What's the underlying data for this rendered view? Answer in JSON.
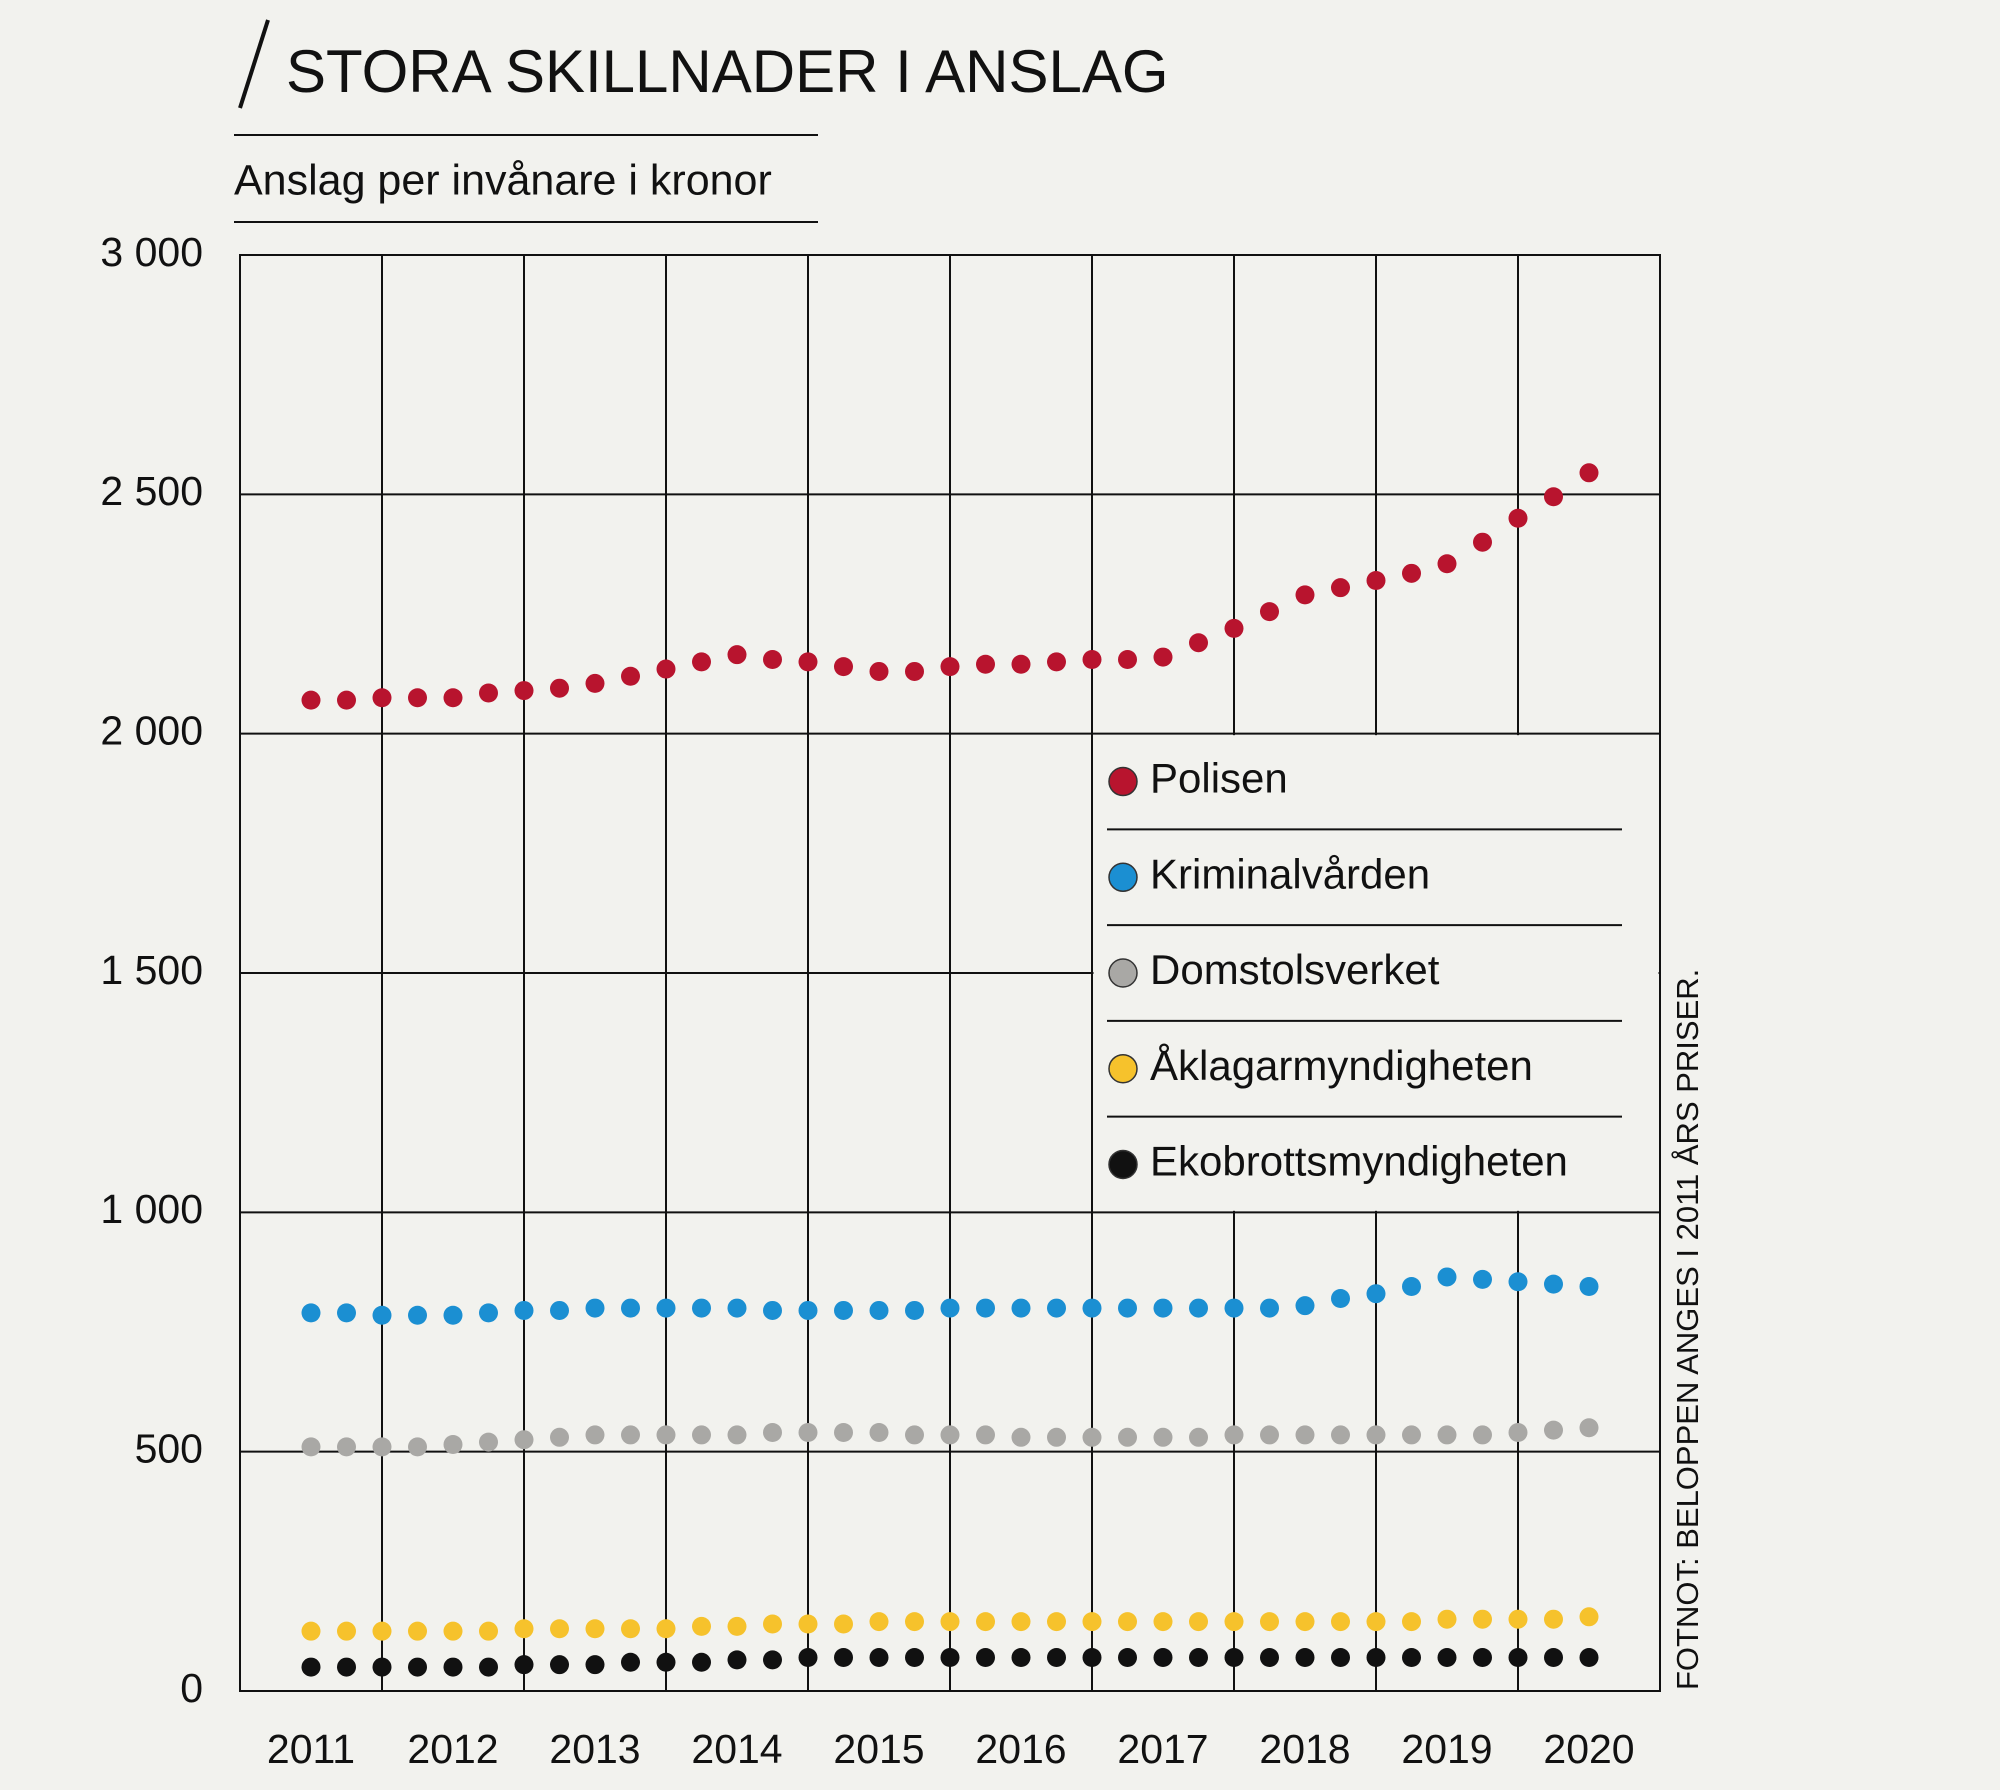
{
  "chart_data": {
    "type": "dot",
    "title": "STORA SKILLNADER I ANSLAG",
    "subtitle": "Anslag per invånare i kronor",
    "footnote": "FOTNOT: BELOPPEN ANGES I 2011 ÅRS PRISER.",
    "categories": [
      "2011",
      null,
      null,
      null,
      "2012",
      null,
      null,
      null,
      "2013",
      null,
      null,
      null,
      "2014",
      null,
      null,
      null,
      "2015",
      null,
      null,
      null,
      "2016",
      null,
      null,
      null,
      "2017",
      null,
      null,
      null,
      "2018",
      null,
      null,
      null,
      "2019",
      null,
      null,
      null,
      "2020"
    ],
    "ylim": [
      0,
      3000
    ],
    "yticks": [
      {
        "value": 0,
        "label": "0"
      },
      500,
      {
        "value": 1000,
        "label": "1 000"
      },
      {
        "value": 1500,
        "label": "1 500"
      },
      {
        "value": 2000,
        "label": "2 000"
      },
      {
        "value": 2500,
        "label": "2 500"
      },
      {
        "value": 3000,
        "label": "3 000"
      }
    ],
    "grid": true,
    "legend": "right",
    "series": [
      {
        "name": "Polisen",
        "color": "#b8142e",
        "values": [
          2070,
          2070,
          2075,
          2075,
          2075,
          2085,
          2090,
          2095,
          2105,
          2120,
          2135,
          2150,
          2165,
          2155,
          2150,
          2140,
          2130,
          2130,
          2140,
          2145,
          2145,
          2150,
          2155,
          2155,
          2160,
          2190,
          2220,
          2255,
          2290,
          2305,
          2320,
          2335,
          2355,
          2400,
          2450,
          2495,
          2545
        ]
      },
      {
        "name": "Kriminalvården",
        "color": "#1b8fd2",
        "values": [
          790,
          790,
          785,
          785,
          785,
          790,
          795,
          795,
          800,
          800,
          800,
          800,
          800,
          795,
          795,
          795,
          795,
          795,
          800,
          800,
          800,
          800,
          800,
          800,
          800,
          800,
          800,
          800,
          805,
          820,
          830,
          845,
          865,
          860,
          855,
          850,
          845
        ]
      },
      {
        "name": "Domstolsverket",
        "color": "#a9a8a5",
        "values": [
          510,
          510,
          510,
          510,
          515,
          520,
          525,
          530,
          535,
          535,
          535,
          535,
          535,
          540,
          540,
          540,
          540,
          535,
          535,
          535,
          530,
          530,
          530,
          530,
          530,
          530,
          535,
          535,
          535,
          535,
          535,
          535,
          535,
          535,
          540,
          545,
          550
        ]
      },
      {
        "name": "Åklagarmyndigheten",
        "color": "#f6c22c",
        "values": [
          125,
          125,
          125,
          125,
          125,
          125,
          130,
          130,
          130,
          130,
          130,
          135,
          135,
          140,
          140,
          140,
          145,
          145,
          145,
          145,
          145,
          145,
          145,
          145,
          145,
          145,
          145,
          145,
          145,
          145,
          145,
          145,
          150,
          150,
          150,
          150,
          155
        ]
      },
      {
        "name": "Ekobrottsmyndigheten",
        "color": "#111111",
        "values": [
          50,
          50,
          50,
          50,
          50,
          50,
          55,
          55,
          55,
          60,
          60,
          60,
          65,
          65,
          70,
          70,
          70,
          70,
          70,
          70,
          70,
          70,
          70,
          70,
          70,
          70,
          70,
          70,
          70,
          70,
          70,
          70,
          70,
          70,
          70,
          70,
          70
        ]
      }
    ]
  }
}
